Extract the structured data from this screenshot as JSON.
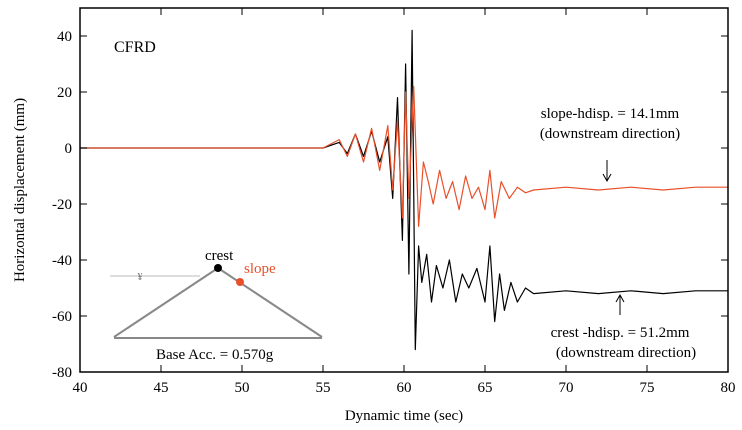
{
  "chart_data": {
    "type": "line",
    "xlabel": "Dynamic time (sec)",
    "ylabel": "Horizontal displacement (mm)",
    "xlim": [
      40,
      80
    ],
    "ylim": [
      -80,
      50
    ],
    "xticks": [
      40,
      45,
      50,
      55,
      60,
      65,
      70,
      75,
      80
    ],
    "yticks": [
      -80,
      -60,
      -40,
      -20,
      0,
      20,
      40
    ],
    "grid": false,
    "annotations": {
      "label": "CFRD",
      "slope_text_1": "slope-hdisp. = 14.1mm",
      "slope_text_2": "(downstream direction)",
      "crest_text_1": "crest -hdisp. = 51.2mm",
      "crest_text_2": "(downstream direction)",
      "inset_crest": "crest",
      "inset_slope": "slope",
      "inset_base": "Base Acc. = 0.570g"
    },
    "colors": {
      "crest": "#000000",
      "slope": "#e8502a"
    },
    "series": [
      {
        "key": "crest",
        "x": [
          40,
          45,
          50,
          52,
          54,
          55,
          56,
          56.5,
          57,
          57.5,
          58,
          58.5,
          59,
          59.3,
          59.6,
          59.9,
          60.1,
          60.3,
          60.5,
          60.7,
          60.9,
          61.1,
          61.4,
          61.7,
          62,
          62.4,
          62.8,
          63.2,
          63.6,
          64,
          64.5,
          65,
          65.3,
          65.6,
          65.9,
          66.2,
          66.6,
          67,
          67.5,
          68,
          70,
          72,
          74,
          76,
          78,
          80
        ],
        "y": [
          0,
          0,
          0,
          0,
          0,
          0,
          2,
          -2,
          5,
          -3,
          6,
          -5,
          4,
          -18,
          18,
          -33,
          30,
          -45,
          42,
          -72,
          -35,
          -48,
          -38,
          -55,
          -42,
          -50,
          -40,
          -55,
          -45,
          -50,
          -43,
          -55,
          -35,
          -62,
          -45,
          -58,
          -48,
          -55,
          -50,
          -52,
          -51,
          -52,
          -51,
          -52,
          -51,
          -51
        ]
      },
      {
        "key": "slope",
        "x": [
          40,
          45,
          50,
          52,
          54,
          55,
          56,
          56.5,
          57,
          57.5,
          58,
          58.5,
          59,
          59.3,
          59.6,
          59.9,
          60.1,
          60.3,
          60.6,
          60.9,
          61.2,
          61.5,
          61.8,
          62.2,
          62.6,
          63,
          63.4,
          63.8,
          64.2,
          64.6,
          65,
          65.3,
          65.6,
          66,
          66.5,
          67,
          67.5,
          68,
          70,
          72,
          74,
          76,
          78,
          80
        ],
        "y": [
          0,
          0,
          0,
          0,
          0,
          0,
          3,
          -3,
          5,
          -5,
          7,
          -8,
          8,
          -15,
          10,
          -25,
          20,
          -18,
          22,
          -28,
          -5,
          -12,
          -20,
          -8,
          -18,
          -12,
          -22,
          -10,
          -18,
          -14,
          -22,
          -8,
          -25,
          -12,
          -18,
          -14,
          -16,
          -15,
          -14,
          -15,
          -14,
          -15,
          -14,
          -14
        ]
      }
    ]
  }
}
